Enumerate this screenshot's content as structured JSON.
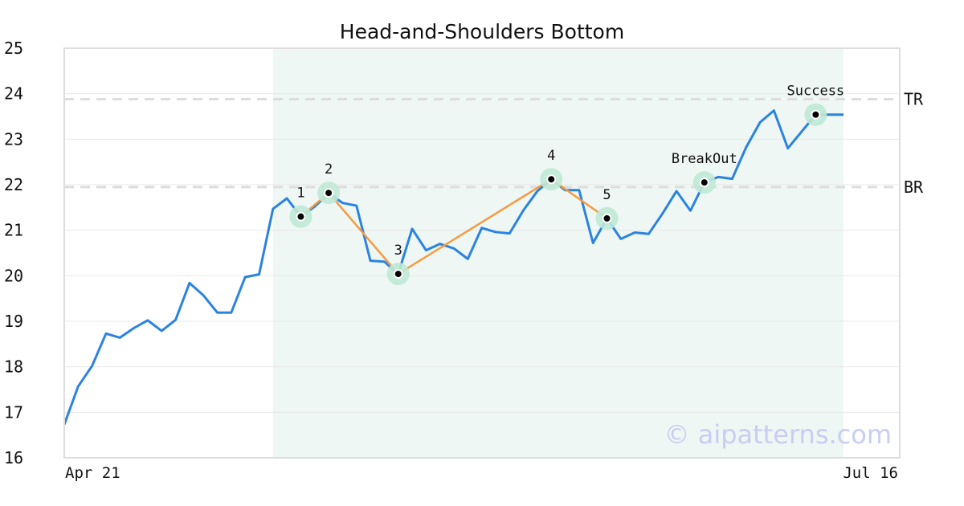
{
  "chart_data": {
    "type": "line",
    "title": "Head-and-Shoulders Bottom",
    "ylim": [
      16,
      25
    ],
    "yticks": [
      16,
      17,
      18,
      19,
      20,
      21,
      22,
      23,
      24,
      25
    ],
    "x_tick_labels": {
      "start": "Apr 21",
      "end": "Jul 16"
    },
    "grid": true,
    "series": [
      {
        "values": [
          16.73,
          17.57,
          18.02,
          18.73,
          18.64,
          18.85,
          19.02,
          18.79,
          19.03,
          19.84,
          19.57,
          19.19,
          19.19,
          19.97,
          20.03,
          21.47,
          21.7,
          21.3,
          21.52,
          21.81,
          21.6,
          21.54,
          20.33,
          20.31,
          20.04,
          21.03,
          20.56,
          20.7,
          20.6,
          20.37,
          21.05,
          20.96,
          20.93,
          21.44,
          21.86,
          22.12,
          21.88,
          21.88,
          20.72,
          21.26,
          20.81,
          20.95,
          20.92,
          21.37,
          21.86,
          21.43,
          22.05,
          22.17,
          22.13,
          22.82,
          23.37,
          23.63,
          22.8,
          23.17,
          23.54,
          23.54,
          23.54
        ],
        "color": "#2b83e0"
      }
    ],
    "pattern": {
      "name": "Head-and-Shoulders Bottom",
      "shaded_range": {
        "start_index": 15,
        "end_index": 56
      },
      "points": [
        {
          "label": "1",
          "index": 17,
          "value": 21.3
        },
        {
          "label": "2",
          "index": 19,
          "value": 21.82
        },
        {
          "label": "3",
          "index": 24,
          "value": 20.04
        },
        {
          "label": "4",
          "index": 35,
          "value": 22.12
        },
        {
          "label": "5",
          "index": 39,
          "value": 21.26
        }
      ],
      "line_color": "#f59b42",
      "breakout": {
        "label": "BreakOut",
        "index": 46,
        "value": 22.05
      },
      "success": {
        "label": "Success",
        "index": 54,
        "value": 23.54
      }
    },
    "reference_lines": [
      {
        "label": "TR",
        "value": 23.88
      },
      {
        "label": "BR",
        "value": 21.95
      }
    ]
  },
  "watermark": "© aipatterns.com",
  "colors": {
    "line": "#2b83e0",
    "pattern": "#f59b42",
    "shade": "#eef7f3",
    "marker_halo": "#bfe8d6",
    "ref_line": "#dddddd",
    "grid": "#e8e8e8",
    "frame": "#dddddd"
  }
}
